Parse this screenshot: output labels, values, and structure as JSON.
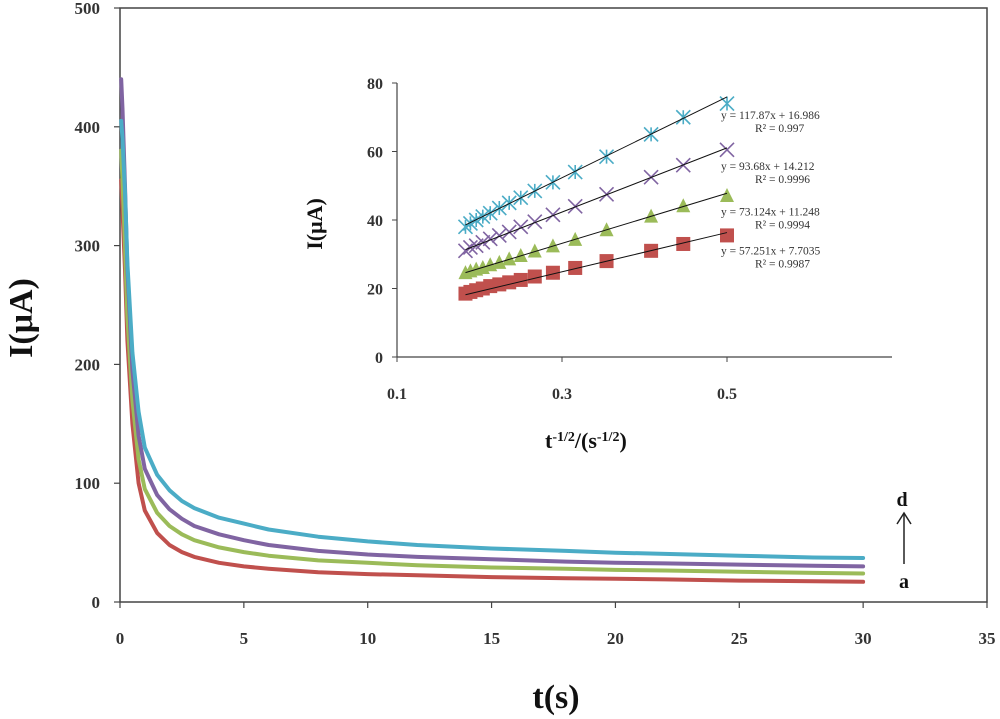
{
  "chart_data": [
    {
      "type": "line",
      "title": "",
      "xlabel": "t(s)",
      "ylabel": "I(μA)",
      "xlim": [
        0,
        35
      ],
      "ylim": [
        0,
        500
      ],
      "xticks": [
        "0",
        "5",
        "10",
        "15",
        "20",
        "25",
        "30",
        "35"
      ],
      "yticks": [
        "0",
        "100",
        "200",
        "300",
        "400",
        "500"
      ],
      "grid": false,
      "x": [
        0.05,
        0.1,
        0.2,
        0.3,
        0.5,
        0.75,
        1,
        1.5,
        2,
        2.5,
        3,
        4,
        5,
        6,
        8,
        10,
        12,
        15,
        18,
        20,
        22,
        25,
        28,
        30
      ],
      "series": [
        {
          "key": "a",
          "color": "#c0504d",
          "values": [
            355,
            330,
            280,
            220,
            150,
            100,
            77,
            58,
            48,
            42,
            38,
            33,
            30,
            28,
            25,
            23.5,
            22.5,
            21,
            20,
            19.5,
            19,
            18,
            17.5,
            17
          ]
        },
        {
          "key": "b",
          "color": "#9bbb59",
          "values": [
            380,
            355,
            300,
            240,
            170,
            120,
            95,
            75,
            64,
            57,
            52,
            46,
            42,
            39,
            35,
            33,
            31,
            29,
            28,
            27,
            26.5,
            25.5,
            24.5,
            24
          ]
        },
        {
          "key": "c",
          "color": "#8064a2",
          "values": [
            440,
            415,
            350,
            280,
            195,
            140,
            112,
            90,
            78,
            70,
            64,
            57,
            52,
            48,
            43,
            40,
            38,
            36,
            34,
            33,
            32.5,
            31.5,
            30.5,
            30
          ]
        },
        {
          "key": "d",
          "color": "#4bacc6",
          "values": [
            405,
            390,
            345,
            285,
            210,
            160,
            130,
            107,
            94,
            85,
            79,
            71,
            66,
            61,
            55,
            51,
            48,
            45,
            43,
            41.5,
            40.5,
            39,
            37.5,
            37
          ]
        }
      ],
      "annotations": {
        "top_label": "d",
        "bottom_label": "a",
        "arrow": "up"
      },
      "inset": {
        "type": "scatter",
        "xlabel": "t-1/2/(s-1/2)",
        "ylabel": "I(μA)",
        "xlim": [
          0.1,
          0.7
        ],
        "ylim": [
          0,
          80
        ],
        "xticks": [
          "0.1",
          "0.3",
          "0.5"
        ],
        "yticks": [
          "0",
          "20",
          "40",
          "60",
          "80"
        ],
        "x": [
          0.183,
          0.189,
          0.196,
          0.204,
          0.213,
          0.224,
          0.236,
          0.25,
          0.267,
          0.289,
          0.316,
          0.354,
          0.408,
          0.447,
          0.5
        ],
        "series": [
          {
            "key": "a",
            "marker": "square",
            "color": "#c0504d",
            "equation": "y = 57.251x + 7.7035",
            "r2": "R² = 0.9987",
            "slope": 57.251,
            "intercept": 7.7035,
            "values": [
              18.5,
              19,
              19.5,
              20,
              20.7,
              21.2,
              21.8,
              22.5,
              23.5,
              24.6,
              26,
              28,
              31,
              33,
              35.5
            ]
          },
          {
            "key": "b",
            "marker": "triangle",
            "color": "#9bbb59",
            "equation": "y = 73.124x + 11.248",
            "r2": "R² = 0.9994",
            "slope": 73.124,
            "intercept": 11.248,
            "values": [
              24.5,
              25,
              25.5,
              26,
              26.8,
              27.5,
              28.5,
              29.5,
              30.8,
              32.3,
              34.2,
              37,
              41,
              44,
              47
            ]
          },
          {
            "key": "c",
            "marker": "x",
            "color": "#8064a2",
            "equation": "y = 93.68x + 14.212",
            "r2": "R² = 0.9996",
            "slope": 93.68,
            "intercept": 14.212,
            "values": [
              31,
              32,
              32.5,
              33.5,
              34.5,
              35.5,
              36.5,
              38,
              39.5,
              41.5,
              44,
              47.5,
              52.5,
              56,
              60.5
            ]
          },
          {
            "key": "d",
            "marker": "asterisk",
            "color": "#4bacc6",
            "equation": "y = 117.87x + 16.986",
            "r2": "R² = 0.997",
            "slope": 117.87,
            "intercept": 16.986,
            "values": [
              38,
              39,
              40,
              41,
              42,
              43.5,
              45,
              46.5,
              48.5,
              51,
              54,
              58.5,
              65,
              70,
              74
            ]
          }
        ]
      }
    }
  ]
}
